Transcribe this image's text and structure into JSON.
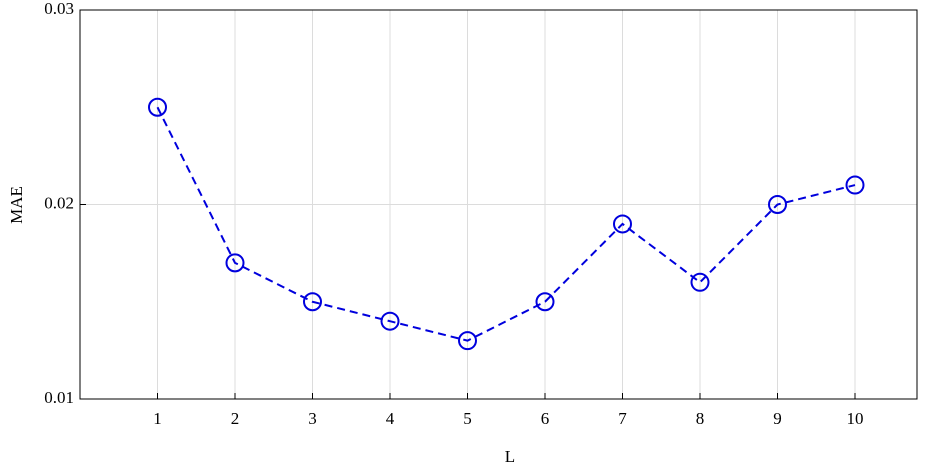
{
  "chart_data": {
    "type": "line",
    "xlabel": "L",
    "ylabel": "MAE",
    "x": [
      1,
      2,
      3,
      4,
      5,
      6,
      7,
      8,
      9,
      10
    ],
    "series": [
      {
        "color": "#0000dd",
        "values": [
          0.025,
          0.017,
          0.015,
          0.014,
          0.013,
          0.015,
          0.019,
          0.016,
          0.02,
          0.021
        ]
      }
    ],
    "xlim": [
      0,
      10.8
    ],
    "xticks": [
      1,
      2,
      3,
      4,
      5,
      6,
      7,
      8,
      9,
      10
    ],
    "ylim": [
      0.01,
      0.03
    ],
    "yticks": [
      0.01,
      0.02,
      0.03
    ],
    "grid": true
  }
}
